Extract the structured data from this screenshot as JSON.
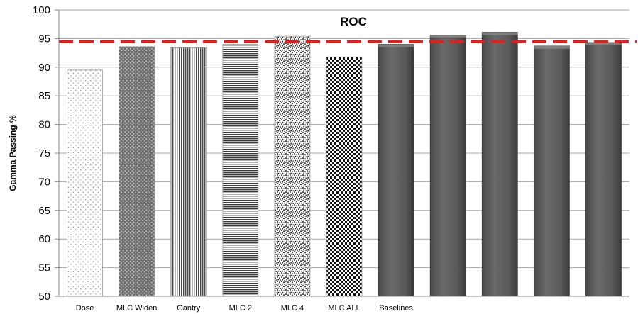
{
  "chart_data": {
    "type": "bar",
    "title": "",
    "xlabel": "",
    "ylabel": "Gamma Passing %",
    "ylim": [
      50,
      100
    ],
    "yticks": [
      50,
      55,
      60,
      65,
      70,
      75,
      80,
      85,
      90,
      95,
      100
    ],
    "grid": true,
    "categories": [
      "Dose",
      "MLC Widen",
      "Gantry",
      "MLC 2",
      "MLC 4",
      "MLC ALL",
      "Baselines",
      "",
      "",
      "",
      ""
    ],
    "values": [
      89.5,
      93.6,
      93.4,
      94.0,
      95.4,
      91.8,
      94.0,
      95.6,
      96.1,
      93.7,
      94.3
    ],
    "bar_styles": [
      "dots-sparse",
      "dots-dense",
      "vertical-lines",
      "horizontal-lines",
      "speckle",
      "checker",
      "solid",
      "solid",
      "solid",
      "solid",
      "solid"
    ],
    "reference_line": {
      "label": "ROC",
      "value": 94.5,
      "color": "#e0201b",
      "style": "dashed"
    },
    "colors": {
      "solid_bar": "#5b5b5b",
      "grid": "#a6a6a6"
    }
  }
}
